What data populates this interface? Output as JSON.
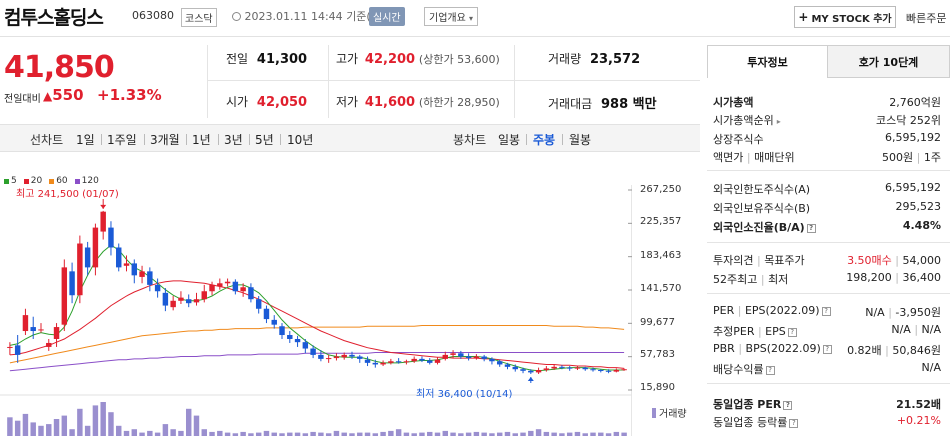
{
  "header": {
    "title": "컴투스홀딩스",
    "code": "063080",
    "market": "코스닥",
    "datetime": "2023.01.11 14:44",
    "basis": "기준(장중)",
    "live_label": "실시간",
    "corp_info": "기업개요",
    "mystock_button": "MY STOCK 추가",
    "quick_order": "빠른주문"
  },
  "price": {
    "current": "41,850",
    "prev_label": "전일대비",
    "change": "550",
    "change_pct": "+1.33%"
  },
  "quote": {
    "prev_close_label": "전일",
    "prev_close": "41,300",
    "high_label": "고가",
    "high": "42,200",
    "upper_limit": "(상한가 53,600)",
    "volume_label": "거래량",
    "volume": "23,572",
    "open_label": "시가",
    "open": "42,050",
    "low_label": "저가",
    "low": "41,600",
    "lower_limit": "(하한가 28,950)",
    "amount_label": "거래대금",
    "amount": "988 백만"
  },
  "tabs": {
    "line_label": "선차트",
    "periods": [
      "1일",
      "1주일",
      "3개월",
      "1년",
      "3년",
      "5년",
      "10년"
    ],
    "candle_label": "봉차트",
    "candles": [
      "일봉",
      "주봉",
      "월봉"
    ],
    "active_candle": "주봉"
  },
  "chart_data": {
    "type": "candlestick",
    "ma_legend": [
      {
        "name": "5",
        "color": "#2ca02c"
      },
      {
        "name": "20",
        "color": "#e0202e"
      },
      {
        "name": "60",
        "color": "#f08a1c"
      },
      {
        "name": "120",
        "color": "#8a4fc8"
      }
    ],
    "y_ticks": [
      "267,250",
      "225,357",
      "183,463",
      "141,570",
      "99,677",
      "57,783",
      "15,890"
    ],
    "y_tick_values": [
      267250,
      225357,
      183463,
      141570,
      99677,
      57783,
      15890
    ],
    "high_annotation": "최고 241,500 (01/07)",
    "low_annotation": "최저 36,400 (10/14)",
    "volume_label": "거래량",
    "candles": [
      [
        70,
        70,
        76,
        60
      ],
      [
        72,
        60,
        85,
        50
      ],
      [
        90,
        110,
        118,
        85
      ],
      [
        95,
        90,
        108,
        80
      ],
      [
        92,
        92,
        100,
        88
      ],
      [
        70,
        75,
        80,
        65
      ],
      [
        80,
        95,
        100,
        70
      ],
      [
        98,
        170,
        180,
        90
      ],
      [
        165,
        135,
        176,
        125
      ],
      [
        135,
        200,
        210,
        125
      ],
      [
        195,
        170,
        202,
        160
      ],
      [
        170,
        220,
        225,
        160
      ],
      [
        215,
        240,
        241,
        205
      ],
      [
        220,
        195,
        228,
        185
      ],
      [
        195,
        170,
        200,
        165
      ],
      [
        172,
        175,
        185,
        165
      ],
      [
        175,
        160,
        180,
        150
      ],
      [
        158,
        165,
        172,
        150
      ],
      [
        165,
        148,
        170,
        140
      ],
      [
        148,
        140,
        156,
        132
      ],
      [
        138,
        122,
        144,
        115
      ],
      [
        120,
        128,
        134,
        116
      ],
      [
        128,
        132,
        140,
        124
      ],
      [
        130,
        125,
        136,
        120
      ],
      [
        126,
        130,
        138,
        122
      ],
      [
        130,
        140,
        148,
        126
      ],
      [
        140,
        148,
        152,
        135
      ],
      [
        146,
        150,
        156,
        142
      ],
      [
        150,
        152,
        156,
        146
      ],
      [
        152,
        140,
        155,
        136
      ],
      [
        140,
        145,
        150,
        133
      ],
      [
        145,
        130,
        150,
        126
      ],
      [
        130,
        118,
        134,
        112
      ],
      [
        118,
        105,
        122,
        100
      ],
      [
        104,
        98,
        110,
        93
      ],
      [
        96,
        85,
        100,
        80
      ],
      [
        85,
        80,
        90,
        75
      ],
      [
        80,
        76,
        84,
        70
      ],
      [
        76,
        68,
        80,
        62
      ],
      [
        68,
        60,
        72,
        56
      ],
      [
        60,
        55,
        66,
        52
      ],
      [
        55,
        56,
        60,
        50
      ],
      [
        56,
        58,
        62,
        53
      ],
      [
        57,
        60,
        63,
        54
      ],
      [
        60,
        58,
        64,
        55
      ],
      [
        58,
        55,
        60,
        50
      ],
      [
        54,
        50,
        58,
        46
      ],
      [
        50,
        48,
        54,
        44
      ],
      [
        48,
        50,
        53,
        46
      ],
      [
        50,
        52,
        55,
        48
      ],
      [
        52,
        51,
        56,
        49
      ],
      [
        51,
        52,
        54,
        48
      ],
      [
        52,
        55,
        58,
        50
      ],
      [
        55,
        53,
        58,
        51
      ],
      [
        53,
        50,
        56,
        48
      ],
      [
        50,
        54,
        57,
        48
      ],
      [
        55,
        60,
        64,
        53
      ],
      [
        60,
        62,
        66,
        56
      ],
      [
        62,
        58,
        65,
        55
      ],
      [
        58,
        56,
        62,
        53
      ],
      [
        56,
        58,
        61,
        54
      ],
      [
        58,
        55,
        60,
        52
      ],
      [
        55,
        52,
        57,
        48
      ],
      [
        52,
        48,
        54,
        45
      ],
      [
        48,
        45,
        50,
        42
      ],
      [
        45,
        42,
        48,
        39
      ],
      [
        42,
        40,
        44,
        37
      ],
      [
        40,
        38,
        42,
        36
      ],
      [
        38,
        41,
        44,
        36
      ],
      [
        41,
        43,
        46,
        39
      ],
      [
        43,
        45,
        48,
        41
      ],
      [
        45,
        44,
        47,
        42
      ],
      [
        44,
        43,
        46,
        40
      ],
      [
        43,
        44,
        46,
        41
      ],
      [
        44,
        42,
        45,
        40
      ],
      [
        42,
        41,
        44,
        39
      ],
      [
        41,
        40,
        42,
        38
      ],
      [
        40,
        39,
        42,
        37
      ],
      [
        39,
        41,
        43,
        38
      ],
      [
        41,
        42,
        43,
        40
      ]
    ],
    "ma5": [
      72,
      74,
      80,
      85,
      88,
      86,
      85,
      95,
      115,
      140,
      160,
      178,
      190,
      198,
      192,
      180,
      170,
      165,
      158,
      150,
      142,
      135,
      130,
      128,
      128,
      130,
      134,
      140,
      145,
      148,
      148,
      144,
      138,
      128,
      116,
      104,
      94,
      86,
      78,
      71,
      65,
      60,
      58,
      57,
      57,
      57,
      55,
      52,
      50,
      50,
      50,
      51,
      52,
      53,
      53,
      54,
      56,
      58,
      58,
      58,
      58,
      57,
      55,
      52,
      49,
      46,
      43,
      41,
      40,
      41,
      42,
      43,
      44,
      44,
      44,
      43,
      42,
      41,
      41,
      41
    ],
    "ma20": [
      60,
      61,
      63,
      66,
      69,
      72,
      76,
      80,
      86,
      92,
      99,
      106,
      114,
      122,
      128,
      134,
      139,
      143,
      147,
      150,
      152,
      153,
      153,
      152,
      151,
      150,
      148,
      146,
      144,
      141,
      138,
      134,
      130,
      125,
      120,
      115,
      110,
      105,
      100,
      95,
      90,
      86,
      82,
      78,
      75,
      72,
      69,
      67,
      65,
      63,
      62,
      61,
      60,
      59,
      58,
      57,
      57,
      56,
      56,
      56,
      56,
      55,
      55,
      54,
      53,
      52,
      51,
      50,
      49,
      48,
      48,
      47,
      47,
      46,
      46,
      45,
      45,
      44,
      44,
      43
    ],
    "ma60": [
      50,
      52,
      54,
      56,
      58,
      60,
      62,
      64,
      66,
      68,
      70,
      72,
      74,
      76,
      78,
      80,
      82,
      84,
      85,
      86,
      87,
      88,
      89,
      90,
      90,
      91,
      91,
      92,
      92,
      93,
      93,
      93,
      93,
      94,
      94,
      94,
      94,
      94,
      95,
      95,
      95,
      95,
      95,
      95,
      95,
      95,
      96,
      96,
      96,
      96,
      96,
      96,
      96,
      97,
      97,
      97,
      97,
      97,
      97,
      97,
      97,
      97,
      97,
      97,
      97,
      97,
      97,
      97,
      97,
      97,
      96,
      96,
      96,
      96,
      95,
      95,
      94,
      94,
      93,
      92
    ],
    "ma120": [
      40,
      41,
      42,
      43,
      44,
      45,
      46,
      47,
      48,
      49,
      50,
      51,
      52,
      53,
      54,
      54,
      55,
      55,
      56,
      56,
      57,
      57,
      58,
      58,
      58,
      59,
      59,
      59,
      60,
      60,
      60,
      60,
      61,
      61,
      61,
      61,
      61,
      61,
      62,
      62,
      62,
      62,
      62,
      62,
      62,
      62,
      62,
      63,
      63,
      63,
      63,
      63,
      63,
      63,
      63,
      63,
      63,
      63,
      63,
      63,
      63,
      63,
      63,
      63,
      63,
      63,
      63,
      63,
      63,
      63,
      63,
      63,
      63,
      63,
      63,
      63,
      63,
      63,
      63,
      63
    ],
    "volumes": [
      0.55,
      0.45,
      0.65,
      0.4,
      0.3,
      0.35,
      0.5,
      0.6,
      0.2,
      0.8,
      0.3,
      0.9,
      1.0,
      0.7,
      0.3,
      0.15,
      0.2,
      0.1,
      0.15,
      0.1,
      0.35,
      0.2,
      0.15,
      0.8,
      0.6,
      0.2,
      0.12,
      0.15,
      0.1,
      0.08,
      0.12,
      0.08,
      0.1,
      0.15,
      0.1,
      0.08,
      0.1,
      0.1,
      0.08,
      0.12,
      0.1,
      0.08,
      0.15,
      0.1,
      0.08,
      0.1,
      0.1,
      0.08,
      0.12,
      0.15,
      0.2,
      0.1,
      0.08,
      0.1,
      0.12,
      0.1,
      0.15,
      0.1,
      0.08,
      0.1,
      0.12,
      0.1,
      0.08,
      0.1,
      0.12,
      0.08,
      0.1,
      0.15,
      0.2,
      0.12,
      0.1,
      0.08,
      0.1,
      0.12,
      0.08,
      0.1,
      0.1,
      0.08,
      0.12,
      0.1
    ]
  },
  "panel": {
    "tabs": [
      "투자정보",
      "호가 10단계"
    ],
    "market_cap_label": "시가총액",
    "market_cap": "2,760억원",
    "cap_rank_label": "시가총액순위",
    "cap_rank": "코스닥 252위",
    "shares_label": "상장주식수",
    "shares": "6,595,192",
    "par_label": "액면가",
    "unit_label": "매매단위",
    "par": "500원",
    "unit": "1주",
    "foreign_limit_label": "외국인한도주식수(A)",
    "foreign_limit": "6,595,192",
    "foreign_hold_label": "외국인보유주식수(B)",
    "foreign_hold": "295,523",
    "foreign_ratio_label": "외국인소진율(B/A)",
    "foreign_ratio": "4.48%",
    "opinion_label": "투자의견",
    "target_label": "목표주가",
    "opinion": "3.50매수",
    "target": "54,000",
    "w52_label": "52주최고",
    "w52_low_label": "최저",
    "w52_high": "198,200",
    "w52_low": "36,400",
    "per_label": "PER",
    "eps_label": "EPS(2022.09)",
    "per": "N/A",
    "eps": "-3,950원",
    "eper_label": "추정PER",
    "eeps_label": "EPS",
    "eper": "N/A",
    "eeps": "N/A",
    "pbr_label": "PBR",
    "bps_label": "BPS(2022.09)",
    "pbr": "0.82배",
    "bps": "50,846원",
    "div_label": "배당수익률",
    "div": "N/A",
    "ind_per_label": "동일업종 PER",
    "ind_per": "21.52배",
    "ind_rate_label": "동일업종 등락률",
    "ind_rate": "+0.21%"
  }
}
